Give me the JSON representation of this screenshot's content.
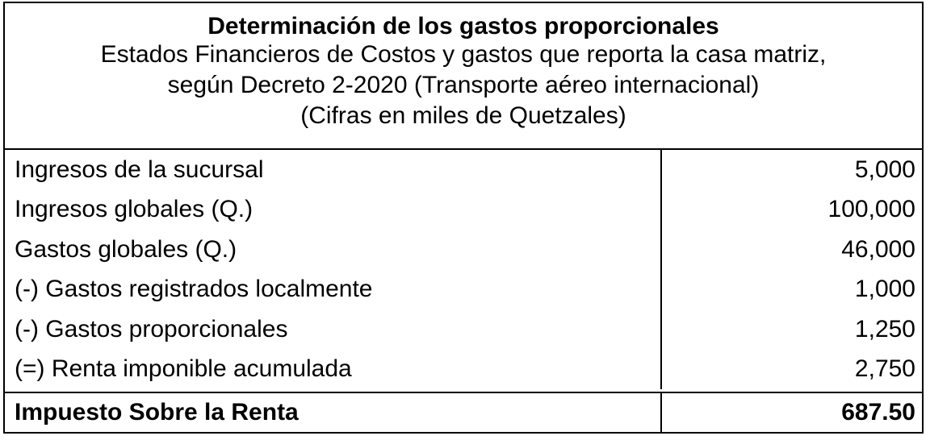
{
  "header": {
    "title": "Determinación de los gastos proporcionales",
    "subtitle_lines": [
      "Estados Financieros de Costos y gastos que reporta la casa matriz,",
      "según Decreto 2-2020 (Transporte aéreo internacional)",
      "(Cifras en miles de Quetzales)"
    ]
  },
  "rows": [
    {
      "label": "Ingresos de la sucursal",
      "value": "5,000"
    },
    {
      "label": "Ingresos globales (Q.)",
      "value": "100,000"
    },
    {
      "label": "Gastos globales (Q.)",
      "value": "46,000"
    },
    {
      "label": "(-) Gastos registrados localmente",
      "value": "1,000"
    },
    {
      "label": "(-) Gastos proporcionales",
      "value": "1,250"
    },
    {
      "label": "(=) Renta imponible acumulada",
      "value": "2,750"
    }
  ],
  "total": {
    "label": "Impuesto Sobre la Renta",
    "value": "687.50"
  }
}
